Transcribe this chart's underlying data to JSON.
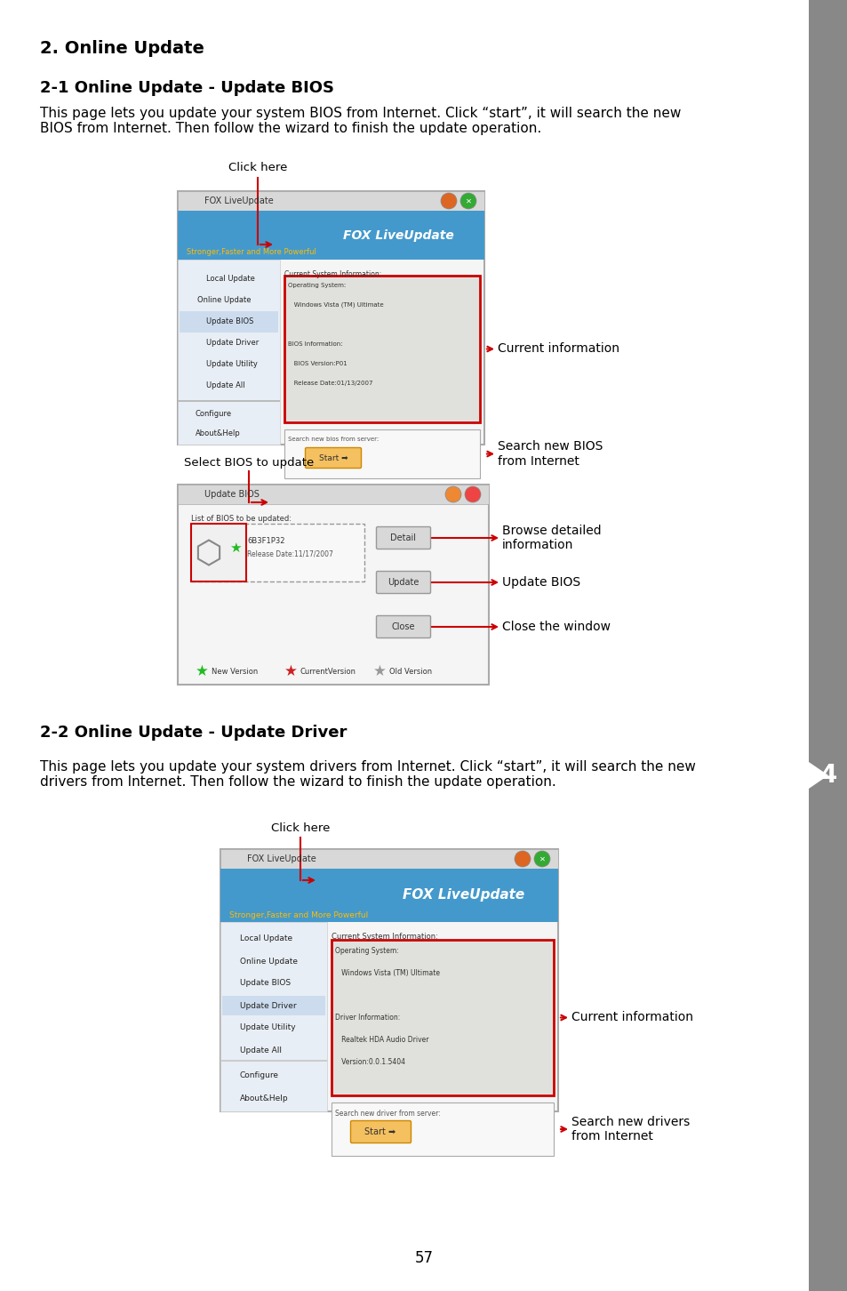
{
  "title1": "2. Online Update",
  "title2": "2-1 Online Update - Update BIOS",
  "body1": "This page lets you update your system BIOS from Internet. Click “start”, it will search the new\nBIOS from Internet. Then follow the wizard to finish the update operation.",
  "label_click_here_1": "Click here",
  "label_current_info": "Current information",
  "label_search_bios": "Search new BIOS\nfrom Internet",
  "label_select_bios": "Select BIOS to update",
  "label_browse": "Browse detailed\ninformation",
  "label_update_bios": "Update BIOS",
  "label_close_window": "Close the window",
  "title3": "2-2 Online Update - Update Driver",
  "body2": "This page lets you update your system drivers from Internet. Click “start”, it will search the new\ndrivers from Internet. Then follow the wizard to finish the update operation.",
  "label_click_here_2": "Click here",
  "label_current_info2": "Current information",
  "label_search_drivers": "Search new drivers\nfrom Internet",
  "page_number": "57",
  "bg_color": "#ffffff",
  "text_color": "#000000",
  "sidebar_color": "#888888",
  "arrow_color": "#cc0000"
}
